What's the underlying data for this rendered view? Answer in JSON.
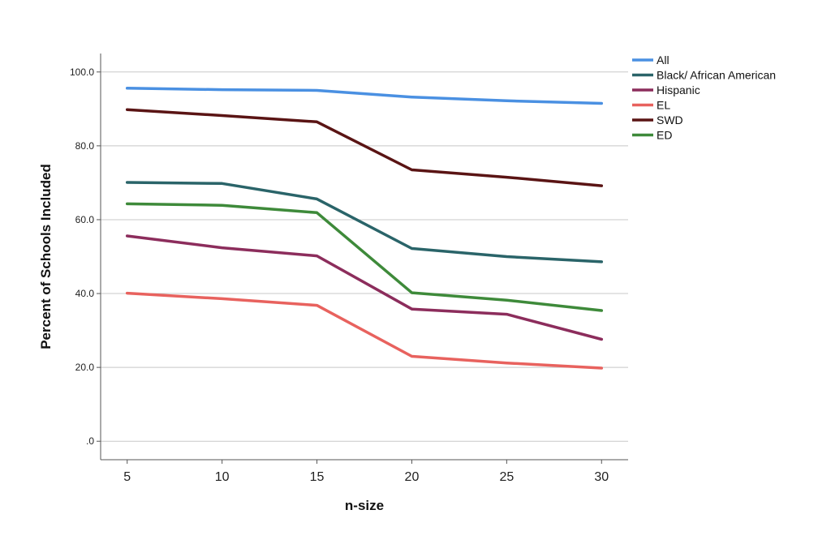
{
  "chart_data": {
    "type": "line",
    "title": "",
    "xlabel": "n-size",
    "ylabel": "Percent of Schools Included",
    "x": [
      5,
      10,
      15,
      20,
      25,
      30
    ],
    "x_tick_labels": [
      "5",
      "10",
      "15",
      "20",
      "25",
      "30"
    ],
    "ylim": [
      -5,
      105
    ],
    "y_ticks": [
      0,
      20,
      40,
      60,
      80,
      100
    ],
    "y_tick_labels": [
      ".0",
      "20.0",
      "40.0",
      "60.0",
      "80.0",
      "100.0"
    ],
    "grid": "horizontal",
    "legend_position": "top-right, outside plot",
    "series": [
      {
        "name": "All",
        "color": "#4a90e2",
        "values": [
          95.6,
          95.2,
          95.0,
          93.2,
          92.2,
          91.5
        ]
      },
      {
        "name": "Black/ African American",
        "color": "#2a6469",
        "values": [
          70.1,
          69.8,
          65.6,
          52.2,
          50.0,
          48.6
        ]
      },
      {
        "name": "Hispanic",
        "color": "#8c2d5c",
        "values": [
          55.6,
          52.4,
          50.2,
          35.8,
          34.4,
          27.6
        ]
      },
      {
        "name": "EL",
        "color": "#e8625e",
        "values": [
          40.1,
          38.6,
          36.8,
          23.0,
          21.2,
          19.8
        ]
      },
      {
        "name": "SWD",
        "color": "#5a1414",
        "values": [
          89.8,
          88.2,
          86.5,
          73.5,
          71.5,
          69.2
        ]
      },
      {
        "name": "ED",
        "color": "#3e8a3a",
        "values": [
          64.3,
          63.9,
          61.9,
          40.2,
          38.2,
          35.4
        ]
      }
    ]
  }
}
